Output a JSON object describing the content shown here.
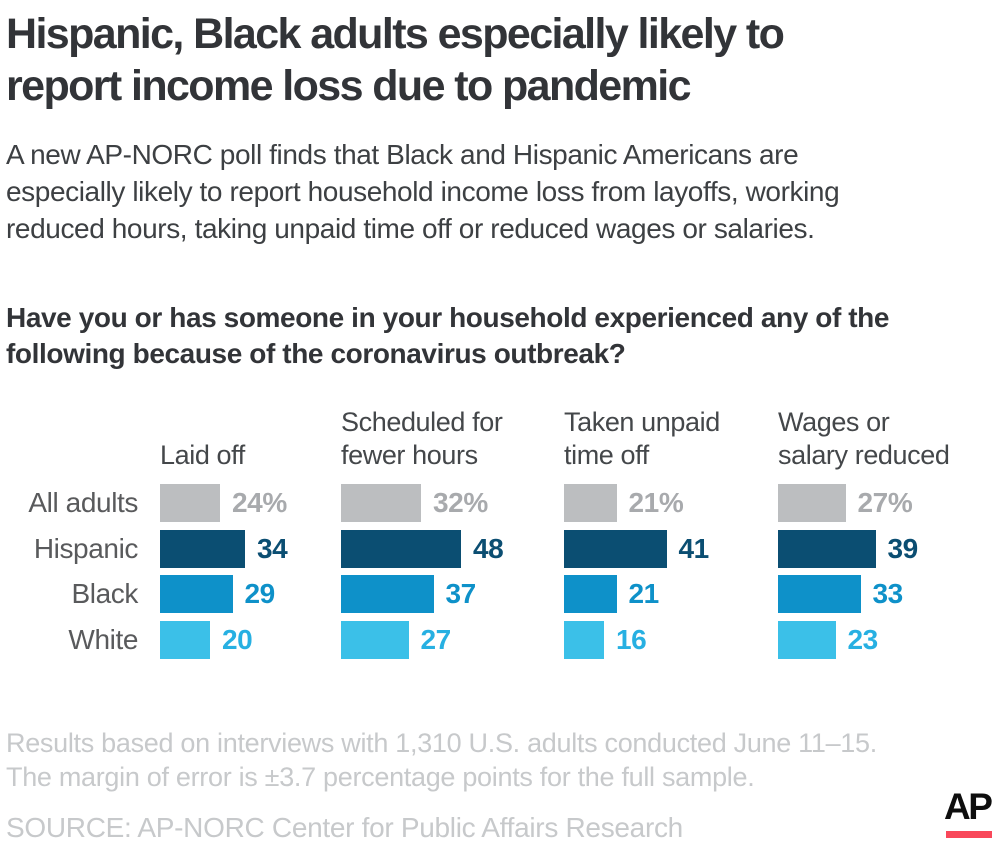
{
  "header": {
    "title": "Hispanic, Black adults especially likely to\nreport income loss due to pandemic",
    "subtitle": "A new AP-NORC poll finds that Black and Hispanic Americans are\nespecially likely to report household income loss from layoffs, working\nreduced hours, taking unpaid time off or reduced wages or salaries."
  },
  "question": "Have you or has someone in your household experienced any of the\nfollowing because of the coronavirus outbreak?",
  "chart_data": {
    "type": "bar",
    "orientation": "horizontal",
    "unit": "percent",
    "grid": false,
    "axes_shown": false,
    "categories": [
      "All adults",
      "Hispanic",
      "Black",
      "White"
    ],
    "groups": [
      "Laid off",
      "Scheduled for fewer hours",
      "Taken unpaid time off",
      "Wages or salary reduced"
    ],
    "columns": [
      {
        "header": "Laid off",
        "values": [
          24,
          34,
          29,
          20
        ]
      },
      {
        "header": "Scheduled for\nfewer hours",
        "values": [
          32,
          48,
          37,
          27
        ]
      },
      {
        "header": "Taken unpaid\ntime off",
        "values": [
          21,
          41,
          21,
          16
        ]
      },
      {
        "header": "Wages or\nsalary reduced",
        "values": [
          27,
          39,
          33,
          23
        ]
      }
    ],
    "rows": [
      {
        "label": "All adults",
        "bar_color": "#bcbec0",
        "value_color": "#a8aaad",
        "suffix": "%"
      },
      {
        "label": "Hispanic",
        "bar_color": "#0b4e72",
        "value_color": "#0b4e72",
        "suffix": ""
      },
      {
        "label": "Black",
        "bar_color": "#0e91c9",
        "value_color": "#0e91c9",
        "suffix": ""
      },
      {
        "label": "White",
        "bar_color": "#3bc0e8",
        "value_color": "#27b0e2",
        "suffix": ""
      }
    ],
    "xlim": [
      0,
      50
    ],
    "value_labels": "end-of-bar"
  },
  "footer": {
    "note": "Results based on interviews with 1,310 U.S. adults conducted June 11–15.\nThe margin of error is ±3.7 percentage points for the full sample.",
    "source": "SOURCE: AP-NORC Center for Public Affairs Research"
  },
  "logo": {
    "text": "AP",
    "underline_color": "#f9485a"
  }
}
